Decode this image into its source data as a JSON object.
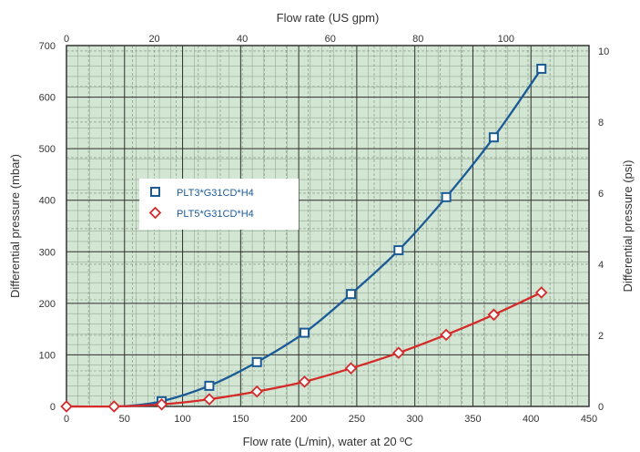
{
  "chart_data": {
    "type": "line",
    "title": "",
    "xlabel": "Flow rate (L/min), water at 20 ºC",
    "ylabel": "Differential pressure (mbar)",
    "x2label": "Flow rate (US gpm)",
    "y2label": "Differential pressure (psi)",
    "xlim": [
      0,
      450
    ],
    "ylim": [
      0,
      700
    ],
    "x2lim": [
      0,
      118.88
    ],
    "y2lim": [
      0,
      10.153
    ],
    "x_ticks": [
      "0",
      "50",
      "100",
      "150",
      "200",
      "250",
      "300",
      "350",
      "400",
      "450"
    ],
    "y_ticks": [
      "0",
      "100",
      "200",
      "300",
      "400",
      "500",
      "600",
      "700"
    ],
    "x2_ticks": [
      "0",
      "20",
      "40",
      "60",
      "80",
      "100"
    ],
    "y2_ticks": [
      "0",
      "2",
      "4",
      "6",
      "8",
      "10"
    ],
    "grid": true,
    "legend_position": "upper-left",
    "colors": {
      "plot_background": "#d3e6d3",
      "series_1": "#1a5a96",
      "series_2": "#d42a2a"
    },
    "series": [
      {
        "name": "PLT3*G31CD*H4",
        "marker": "square",
        "x": [
          82,
          123,
          164,
          205,
          245,
          286,
          327,
          368,
          409
        ],
        "y": [
          10,
          40,
          86,
          143,
          218,
          303,
          406,
          522,
          655
        ]
      },
      {
        "name": "PLT5*G31CD*H4",
        "marker": "diamond",
        "x": [
          0,
          41,
          82,
          123,
          164,
          205,
          245,
          286,
          327,
          368,
          409
        ],
        "y": [
          0,
          0,
          4,
          14,
          29,
          48,
          74,
          104,
          139,
          178,
          221
        ]
      }
    ]
  }
}
